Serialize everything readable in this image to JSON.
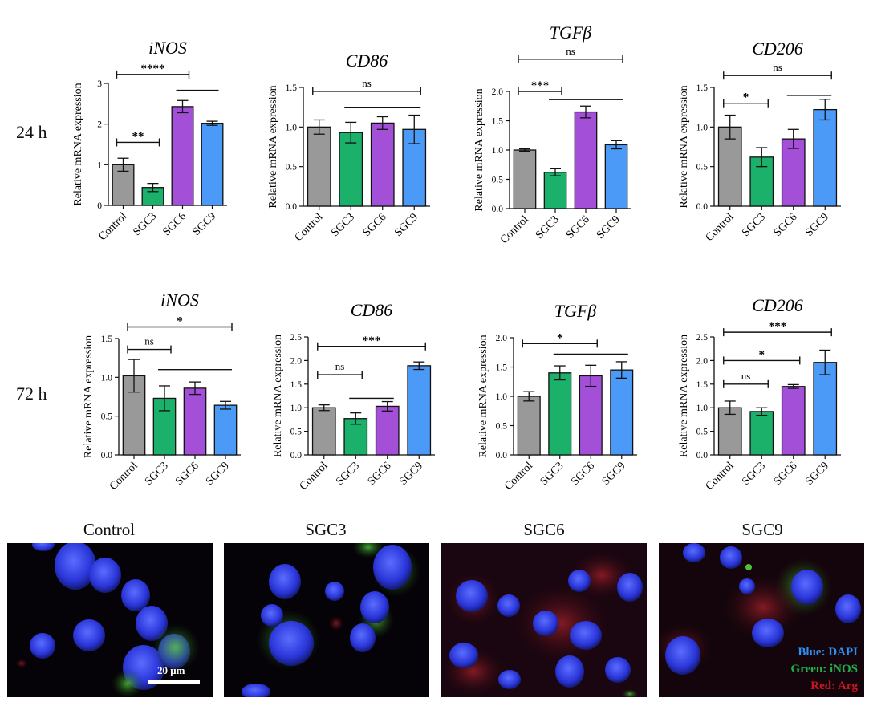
{
  "row_labels": [
    "24 h",
    "72 h"
  ],
  "colors": {
    "Control": "#999999",
    "SGC3": "#1bb16b",
    "SGC6": "#a34fd8",
    "SGC9": "#4c9af7"
  },
  "chart_data": [
    {
      "type": "bar",
      "title": "iNOS",
      "ylabel": "Relative mRNA expression",
      "categories": [
        "Control",
        "SGC3",
        "SGC6",
        "SGC9"
      ],
      "values": [
        1.0,
        0.44,
        2.43,
        2.02
      ],
      "errors": [
        0.16,
        0.1,
        0.15,
        0.05
      ],
      "ylim": [
        0,
        3
      ],
      "yticks": [
        "0",
        "1",
        "2",
        "3"
      ],
      "ytick_values": [
        0,
        1,
        2,
        3
      ],
      "brackets": [
        {
          "from": 0,
          "to": 1,
          "level": 1.55,
          "label": "**"
        },
        {
          "from": 0,
          "to": 2,
          "level": 3.22,
          "label": "****"
        },
        {
          "from": 2,
          "to": 3,
          "level": 2.83,
          "label": ""
        }
      ]
    },
    {
      "type": "bar",
      "title": "CD86",
      "ylabel": "Relative mRNA expression",
      "categories": [
        "Control",
        "SGC3",
        "SGC6",
        "SGC9"
      ],
      "values": [
        1.0,
        0.93,
        1.05,
        0.97
      ],
      "errors": [
        0.09,
        0.13,
        0.08,
        0.18
      ],
      "ylim": [
        0,
        1.5
      ],
      "yticks": [
        "0.0",
        "0.5",
        "1.0",
        "1.5"
      ],
      "ytick_values": [
        0,
        0.5,
        1,
        1.5
      ],
      "brackets": [
        {
          "from": 0,
          "to": 3,
          "level": 1.45,
          "label": "ns"
        },
        {
          "from": 1,
          "to": 3,
          "level": 1.25,
          "label": ""
        }
      ]
    },
    {
      "type": "bar",
      "title": "TGFβ",
      "ylabel": "Relative mRNA expression",
      "categories": [
        "Control",
        "SGC3",
        "SGC6",
        "SGC9"
      ],
      "values": [
        1.0,
        0.62,
        1.65,
        1.09
      ],
      "errors": [
        0.02,
        0.06,
        0.1,
        0.07
      ],
      "ylim": [
        0,
        2
      ],
      "yticks": [
        "0.0",
        "0.5",
        "1.0",
        "1.5",
        "2.0"
      ],
      "ytick_values": [
        0,
        0.5,
        1,
        1.5,
        2
      ],
      "brackets": [
        {
          "from": 0,
          "to": 1,
          "level": 2.0,
          "label": "***"
        },
        {
          "from": 0,
          "to": 3,
          "level": 2.55,
          "label": "ns"
        },
        {
          "from": 1,
          "to": 3,
          "level": 1.86,
          "label": ""
        }
      ]
    },
    {
      "type": "bar",
      "title": "CD206",
      "ylabel": "Relative mRNA expression",
      "categories": [
        "Control",
        "SGC3",
        "SGC6",
        "SGC9"
      ],
      "values": [
        1.0,
        0.62,
        0.85,
        1.22
      ],
      "errors": [
        0.15,
        0.12,
        0.12,
        0.13
      ],
      "ylim": [
        0,
        1.5
      ],
      "yticks": [
        "0.0",
        "0.5",
        "1.0",
        "1.5"
      ],
      "ytick_values": [
        0,
        0.5,
        1,
        1.5
      ],
      "brackets": [
        {
          "from": 0,
          "to": 1,
          "level": 1.3,
          "label": "*"
        },
        {
          "from": 0,
          "to": 3,
          "level": 1.65,
          "label": "ns"
        },
        {
          "from": 2,
          "to": 3,
          "level": 1.4,
          "label": ""
        }
      ]
    },
    {
      "type": "bar",
      "title": "iNOS",
      "ylabel": "Relative mRNA expression",
      "categories": [
        "Control",
        "SGC3",
        "SGC6",
        "SGC9"
      ],
      "values": [
        1.02,
        0.73,
        0.86,
        0.64
      ],
      "errors": [
        0.21,
        0.16,
        0.08,
        0.05
      ],
      "ylim": [
        0,
        1.5
      ],
      "yticks": [
        "0.0",
        "0.5",
        "1.0",
        "1.5"
      ],
      "ytick_values": [
        0,
        0.5,
        1,
        1.5
      ],
      "brackets": [
        {
          "from": 0,
          "to": 3,
          "level": 1.65,
          "label": "*"
        },
        {
          "from": 0,
          "to": 1,
          "level": 1.36,
          "label": "ns"
        },
        {
          "from": 1,
          "to": 3,
          "level": 1.1,
          "label": ""
        }
      ]
    },
    {
      "type": "bar",
      "title": "CD86",
      "ylabel": "Relative mRNA expression",
      "categories": [
        "Control",
        "SGC3",
        "SGC6",
        "SGC9"
      ],
      "values": [
        1.0,
        0.77,
        1.03,
        1.89
      ],
      "errors": [
        0.06,
        0.12,
        0.1,
        0.08
      ],
      "ylim": [
        0,
        2.5
      ],
      "yticks": [
        "0.0",
        "0.5",
        "1.0",
        "1.5",
        "2.0",
        "2.5"
      ],
      "ytick_values": [
        0,
        0.5,
        1,
        1.5,
        2,
        2.5
      ],
      "brackets": [
        {
          "from": 0,
          "to": 3,
          "level": 2.3,
          "label": "***"
        },
        {
          "from": 0,
          "to": 1,
          "level": 1.7,
          "label": "ns"
        },
        {
          "from": 1,
          "to": 2,
          "level": 1.2,
          "label": ""
        }
      ]
    },
    {
      "type": "bar",
      "title": "TGFβ",
      "ylabel": "Relative mRNA expression",
      "categories": [
        "Control",
        "SGC3",
        "SGC6",
        "SGC9"
      ],
      "values": [
        1.0,
        1.4,
        1.35,
        1.45
      ],
      "errors": [
        0.08,
        0.12,
        0.18,
        0.14
      ],
      "ylim": [
        0,
        2
      ],
      "yticks": [
        "0.0",
        "0.5",
        "1.0",
        "1.5",
        "2.0"
      ],
      "ytick_values": [
        0,
        0.5,
        1,
        1.5,
        2
      ],
      "brackets": [
        {
          "from": 0,
          "to": 2,
          "level": 1.9,
          "label": "*"
        },
        {
          "from": 1,
          "to": 3,
          "level": 1.72,
          "label": ""
        }
      ]
    },
    {
      "type": "bar",
      "title": "CD206",
      "ylabel": "Relative mRNA expression",
      "categories": [
        "Control",
        "SGC3",
        "SGC6",
        "SGC9"
      ],
      "values": [
        1.0,
        0.92,
        1.45,
        1.96
      ],
      "errors": [
        0.14,
        0.08,
        0.04,
        0.26
      ],
      "ylim": [
        0,
        2.5
      ],
      "yticks": [
        "0.0",
        "0.5",
        "1.0",
        "1.5",
        "2.0",
        "2.5"
      ],
      "ytick_values": [
        0,
        0.5,
        1,
        1.5,
        2,
        2.5
      ],
      "brackets": [
        {
          "from": 0,
          "to": 3,
          "level": 2.6,
          "label": "***"
        },
        {
          "from": 0,
          "to": 2,
          "level": 2.0,
          "label": "*"
        },
        {
          "from": 0,
          "to": 1,
          "level": 1.5,
          "label": "ns"
        }
      ]
    }
  ],
  "micrographs": {
    "titles": [
      "Control",
      "SGC3",
      "SGC6",
      "SGC9"
    ],
    "scale_bar": "20 μm",
    "legend": {
      "blue": "Blue: DAPI",
      "green": "Green: iNOS",
      "red": "Red: Arg"
    }
  }
}
